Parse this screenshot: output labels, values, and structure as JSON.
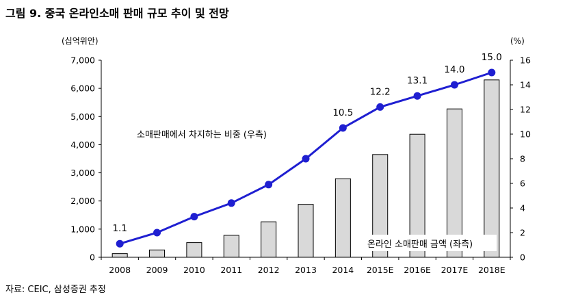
{
  "title": "그림 9. 중국 온라인소매 판매 규모 추이 및 전망",
  "source": "자료: CEIC, 삼성증권 추정",
  "chart_data": {
    "type": "bar+line",
    "categories": [
      "2008",
      "2009",
      "2010",
      "2011",
      "2012",
      "2013",
      "2014",
      "2015E",
      "2016E",
      "2017E",
      "2018E"
    ],
    "left_axis": {
      "unit": "(십억위안)",
      "ylim": [
        0,
        7000
      ],
      "ticks": [
        0,
        1000,
        2000,
        3000,
        4000,
        5000,
        6000,
        7000
      ],
      "tick_labels": [
        "0",
        "1,000",
        "2,000",
        "3,000",
        "4,000",
        "5,000",
        "6,000",
        "7,000"
      ]
    },
    "right_axis": {
      "unit": "(%)",
      "ylim": [
        0,
        16
      ],
      "ticks": [
        0,
        2,
        4,
        6,
        8,
        10,
        12,
        14,
        16
      ],
      "tick_labels": [
        "0",
        "2",
        "4",
        "6",
        "8",
        "10",
        "12",
        "14",
        "16"
      ]
    },
    "series": [
      {
        "name": "온라인 소매판매 금액 (좌측)",
        "type": "bar",
        "axis": "left",
        "color": "#d9d9d9",
        "values": [
          130,
          260,
          520,
          780,
          1260,
          1880,
          2790,
          3650,
          4370,
          5270,
          6300
        ]
      },
      {
        "name": "소매판매에서 차지하는 비중 (우측)",
        "type": "line",
        "axis": "right",
        "color": "#1f1fd1",
        "values": [
          1.1,
          2.0,
          3.3,
          4.4,
          5.9,
          8.0,
          10.5,
          12.2,
          13.1,
          14.0,
          15.0
        ],
        "data_labels": [
          {
            "index": 0,
            "text": "1.1"
          },
          {
            "index": 6,
            "text": "10.5"
          },
          {
            "index": 7,
            "text": "12.2"
          },
          {
            "index": 8,
            "text": "13.1"
          },
          {
            "index": 9,
            "text": "14.0"
          },
          {
            "index": 10,
            "text": "15.0"
          }
        ]
      }
    ],
    "grid": false,
    "legend": "inline annotations"
  }
}
